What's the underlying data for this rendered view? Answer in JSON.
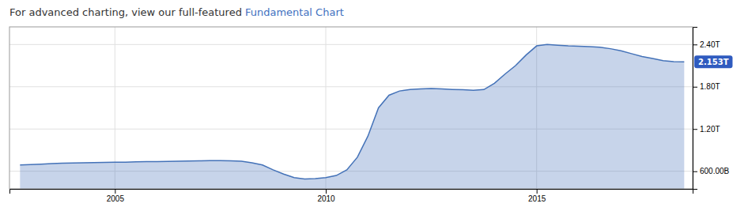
{
  "chart_data": {
    "type": "area",
    "title": "For advanced charting, view our full-featured",
    "annotations": [
      {
        "text": "Fundamental Chart",
        "color": "#4070c0"
      },
      {
        "text": "2.153T",
        "x": 2018.5,
        "y": 2153000000000,
        "color": "#2f5bbf"
      }
    ],
    "color": "#4472b8",
    "grid": true,
    "xlim": [
      2002.5,
      2018.7
    ],
    "xticks": [
      2005,
      2010,
      2015
    ],
    "ylim": [
      350000000000,
      2650000000000
    ],
    "yticks": [
      {
        "value": 600000000000,
        "label": "600.00B"
      },
      {
        "value": 1200000000000,
        "label": "1.20T"
      },
      {
        "value": 1800000000000,
        "label": "1.80T"
      },
      {
        "value": 2400000000000,
        "label": "2.40T"
      }
    ],
    "x": [
      2002.75,
      2003.0,
      2003.25,
      2003.5,
      2003.75,
      2004.0,
      2004.25,
      2004.5,
      2004.75,
      2005.0,
      2005.25,
      2005.5,
      2005.75,
      2006.0,
      2006.25,
      2006.5,
      2006.75,
      2007.0,
      2007.25,
      2007.5,
      2007.75,
      2008.0,
      2008.25,
      2008.5,
      2008.75,
      2009.0,
      2009.25,
      2009.5,
      2009.75,
      2010.0,
      2010.25,
      2010.5,
      2010.75,
      2011.0,
      2011.25,
      2011.5,
      2011.75,
      2012.0,
      2012.25,
      2012.5,
      2012.75,
      2013.0,
      2013.25,
      2013.5,
      2013.75,
      2014.0,
      2014.25,
      2014.5,
      2014.75,
      2015.0,
      2015.25,
      2015.5,
      2015.75,
      2016.0,
      2016.25,
      2016.5,
      2016.75,
      2017.0,
      2017.25,
      2017.5,
      2017.75,
      2018.0,
      2018.25,
      2018.5
    ],
    "values": [
      690000000000,
      695000000000,
      700000000000,
      708000000000,
      715000000000,
      718000000000,
      720000000000,
      722000000000,
      725000000000,
      728000000000,
      730000000000,
      733000000000,
      736000000000,
      738000000000,
      740000000000,
      742000000000,
      745000000000,
      748000000000,
      750000000000,
      752000000000,
      748000000000,
      742000000000,
      720000000000,
      690000000000,
      620000000000,
      560000000000,
      510000000000,
      490000000000,
      495000000000,
      510000000000,
      540000000000,
      620000000000,
      800000000000,
      1100000000000,
      1500000000000,
      1680000000000,
      1740000000000,
      1760000000000,
      1770000000000,
      1775000000000,
      1768000000000,
      1762000000000,
      1758000000000,
      1750000000000,
      1760000000000,
      1850000000000,
      1980000000000,
      2100000000000,
      2250000000000,
      2380000000000,
      2400000000000,
      2390000000000,
      2380000000000,
      2375000000000,
      2370000000000,
      2360000000000,
      2340000000000,
      2310000000000,
      2270000000000,
      2230000000000,
      2200000000000,
      2170000000000,
      2155000000000,
      2153000000000
    ]
  }
}
